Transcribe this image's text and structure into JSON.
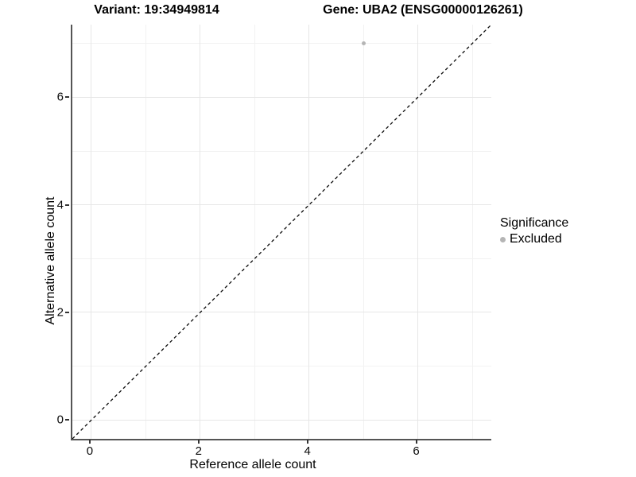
{
  "chart_data": {
    "type": "scatter",
    "titles": {
      "variant": "Variant: 19:34949814",
      "gene": "Gene: UBA2 (ENSG00000126261)"
    },
    "xlabel": "Reference allele count",
    "ylabel": "Alternative allele count",
    "xlim": [
      -0.35,
      7.35
    ],
    "ylim": [
      -0.35,
      7.35
    ],
    "xticks": [
      0,
      2,
      4,
      6
    ],
    "yticks": [
      0,
      2,
      4,
      6
    ],
    "xticks_minor": [
      1,
      3,
      5,
      7
    ],
    "yticks_minor": [
      1,
      3,
      5,
      7
    ],
    "grid": true,
    "reference_line": {
      "type": "identity",
      "slope": 1,
      "intercept": 0,
      "style": "dashed",
      "color": "#0a0a0a"
    },
    "series": [
      {
        "name": "Excluded",
        "color": "#b5b5b5",
        "points": [
          {
            "x": 5,
            "y": 7
          }
        ]
      }
    ],
    "legend": {
      "title": "Significance",
      "position": "right",
      "entries": [
        {
          "label": "Excluded",
          "color": "#b5b5b5"
        }
      ]
    }
  },
  "colors": {
    "background": "#ffffff",
    "grid_major": "#e6e6e6",
    "grid_minor": "#f2f2f2",
    "axis_line": "#555555",
    "tick": "#333333",
    "text": "#000000"
  }
}
